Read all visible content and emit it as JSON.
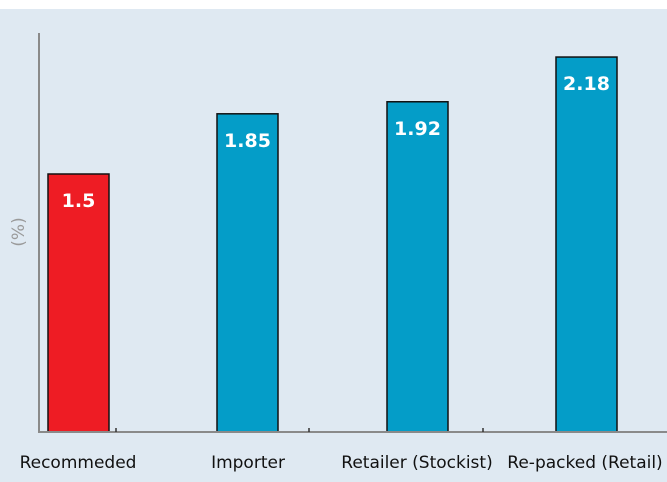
{
  "chart_data": {
    "type": "bar",
    "categories": [
      "Recommeded",
      "Importer",
      "Retailer (Stockist)",
      "Re-packed (Retail)"
    ],
    "values": [
      1.5,
      1.85,
      1.92,
      2.18
    ],
    "data_labels": [
      "1.5",
      "1.85",
      "1.92",
      "2.18"
    ],
    "bar_colors": [
      "#ee1c24",
      "#049dc8",
      "#049dc8",
      "#049dc8"
    ],
    "ylabel": "(%)",
    "xlabel": "",
    "ylim": [
      0,
      2.4
    ],
    "grid": false,
    "legend": "none",
    "background": "#dfe9f2"
  }
}
